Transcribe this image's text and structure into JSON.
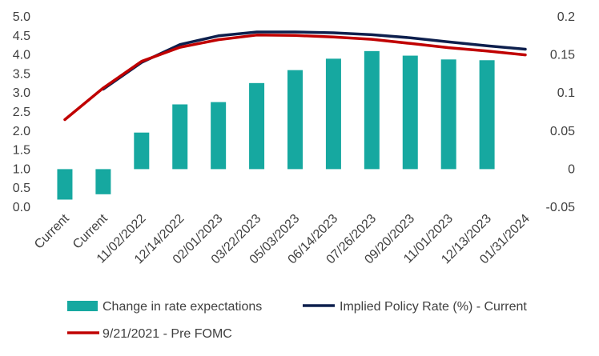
{
  "chart_data": {
    "type": "bar",
    "title": "",
    "xlabel": "",
    "ylabel": "",
    "categories": [
      "Current",
      "Current",
      "11/02/2022",
      "12/14/2022",
      "02/01/2023",
      "03/22/2023",
      "05/03/2023",
      "06/14/2023",
      "07/26/2023",
      "09/20/2023",
      "11/01/2023",
      "12/13/2023",
      "01/31/2024"
    ],
    "y_left": {
      "ylim": [
        0.0,
        5.0
      ],
      "ticks": [
        "0.0",
        "0.5",
        "1.0",
        "1.5",
        "2.0",
        "2.5",
        "3.0",
        "3.5",
        "4.0",
        "4.5",
        "5.0"
      ]
    },
    "y_right": {
      "ylim": [
        -0.05,
        0.2
      ],
      "ticks": [
        "-0.05",
        "0",
        "0.05",
        "0.1",
        "0.15",
        "0.2"
      ]
    },
    "grid": false,
    "legend_position": "bottom",
    "series": [
      {
        "name": "Change in rate expectations",
        "type": "bar",
        "axis": "right",
        "color": "#16A8A0",
        "values": [
          -0.04,
          -0.033,
          0.048,
          0.085,
          0.088,
          0.113,
          0.13,
          0.145,
          0.155,
          0.149,
          0.144,
          0.143,
          null
        ]
      },
      {
        "name": "Implied Policy Rate (%) - Current",
        "type": "line",
        "axis": "left",
        "color": "#0D1F4D",
        "values": [
          null,
          3.1,
          3.8,
          4.27,
          4.5,
          4.6,
          4.6,
          4.58,
          4.53,
          4.45,
          4.34,
          4.24,
          4.15
        ]
      },
      {
        "name": "9/21/2021 - Pre FOMC",
        "type": "line",
        "axis": "left",
        "color": "#C00000",
        "values": [
          2.3,
          3.13,
          3.83,
          4.2,
          4.4,
          4.52,
          4.51,
          4.47,
          4.41,
          4.3,
          4.19,
          4.1,
          4.0
        ]
      }
    ]
  },
  "legend": {
    "items": [
      {
        "label": "Change in rate expectations",
        "icon": "teal-square-icon"
      },
      {
        "label": "Implied Policy Rate (%) - Current",
        "icon": "navy-line-icon"
      },
      {
        "label": "9/21/2021 - Pre FOMC",
        "icon": "red-line-icon"
      }
    ]
  }
}
